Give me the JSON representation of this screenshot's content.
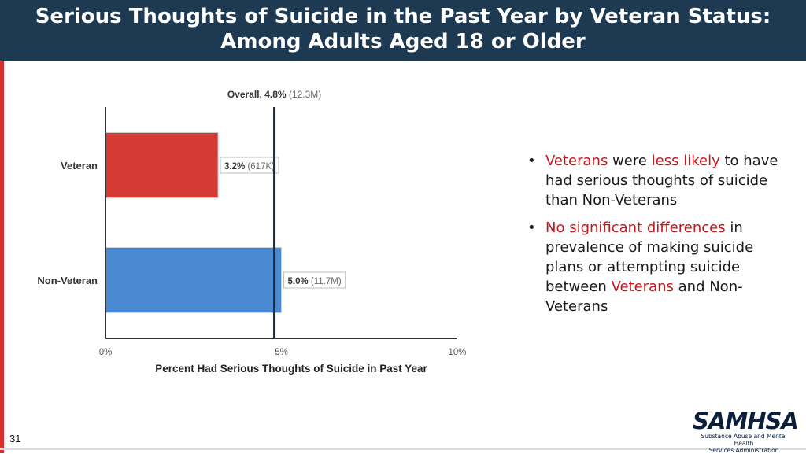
{
  "slide": {
    "title_line1": "Serious Thoughts of Suicide in the Past Year by Veteran Status:",
    "title_line2": "Among Adults Aged 18 or Older",
    "page_number": "31",
    "colors": {
      "header": "#1e3a52",
      "accent_red": "#d9302c",
      "text_red": "#c0171b"
    }
  },
  "bullets": [
    {
      "segments": [
        {
          "text": "Veterans",
          "red": true
        },
        {
          "text": " were ",
          "red": false
        },
        {
          "text": "less likely",
          "red": true
        },
        {
          "text": " to have had serious thoughts of suicide than Non-Veterans",
          "red": false
        }
      ]
    },
    {
      "segments": [
        {
          "text": "No significant differences",
          "red": true
        },
        {
          "text": " in prevalence of making suicide plans or attempting suicide between ",
          "red": false
        },
        {
          "text": "Veterans",
          "red": true
        },
        {
          "text": " and Non-Veterans",
          "red": false
        }
      ]
    }
  ],
  "logo": {
    "word": "SAMHSA",
    "sub_line1": "Substance Abuse and Mental Health",
    "sub_line2": "Services Administration"
  },
  "chart_data": {
    "type": "bar",
    "orientation": "horizontal",
    "categories": [
      "Veteran",
      "Non-Veteran"
    ],
    "values": [
      3.2,
      5.0
    ],
    "value_labels_bold": [
      "3.2%",
      "5.0%"
    ],
    "value_labels_count": [
      "(617K)",
      "(11.7M)"
    ],
    "bar_colors": [
      "#d63a35",
      "#4a8ad2"
    ],
    "reference_line": {
      "value": 4.8,
      "label_bold": "Overall, 4.8%",
      "label_count": "(12.3M)"
    },
    "xlim": [
      0,
      10
    ],
    "xticks": [
      0,
      5,
      10
    ],
    "xtick_labels": [
      "0%",
      "5%",
      "10%"
    ],
    "xlabel": "Percent Had Serious Thoughts of Suicide in Past Year",
    "grid": false
  }
}
